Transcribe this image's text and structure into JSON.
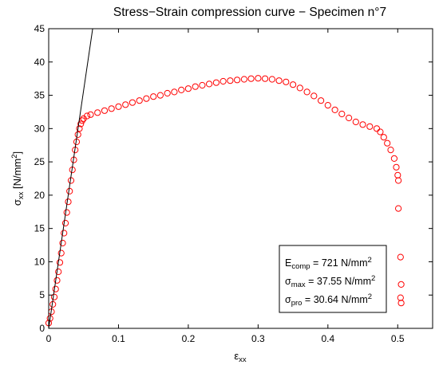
{
  "chart_data": {
    "type": "scatter",
    "title": "Stress−Strain compression curve − Specimen n°7",
    "xlabel": {
      "main": "ε",
      "sub": "xx"
    },
    "ylabel": {
      "main": "σ",
      "sub": "xx",
      "unit_pre": " [N/mm",
      "unit_sup": "2",
      "unit_post": "]"
    },
    "xlim": [
      0,
      0.55
    ],
    "ylim": [
      0,
      45
    ],
    "xticks": [
      0,
      0.1,
      0.2,
      0.3,
      0.4,
      0.5
    ],
    "xtick_labels": [
      "0",
      "0.1",
      "0.2",
      "0.3",
      "0.4",
      "0.5"
    ],
    "yticks": [
      0,
      5,
      10,
      15,
      20,
      25,
      30,
      35,
      40,
      45
    ],
    "ytick_labels": [
      "0",
      "5",
      "10",
      "15",
      "20",
      "25",
      "30",
      "35",
      "40",
      "45"
    ],
    "grid": false,
    "marker": "open circle",
    "colors": {
      "series": "#ff0000",
      "fit_line": "#000000",
      "axes": "#000000"
    },
    "series": [
      {
        "points": [
          [
            0.0,
            0.8
          ],
          [
            0.002,
            1.5
          ],
          [
            0.004,
            2.5
          ],
          [
            0.006,
            3.6
          ],
          [
            0.008,
            4.7
          ],
          [
            0.01,
            5.9
          ],
          [
            0.012,
            7.2
          ],
          [
            0.014,
            8.5
          ],
          [
            0.016,
            9.9
          ],
          [
            0.018,
            11.3
          ],
          [
            0.02,
            12.8
          ],
          [
            0.022,
            14.3
          ],
          [
            0.024,
            15.8
          ],
          [
            0.026,
            17.4
          ],
          [
            0.028,
            19.0
          ],
          [
            0.03,
            20.6
          ],
          [
            0.032,
            22.2
          ],
          [
            0.034,
            23.8
          ],
          [
            0.036,
            25.3
          ],
          [
            0.038,
            26.8
          ],
          [
            0.04,
            28.0
          ],
          [
            0.042,
            29.1
          ],
          [
            0.044,
            30.0
          ],
          [
            0.046,
            30.7
          ],
          [
            0.048,
            31.2
          ],
          [
            0.05,
            31.5
          ],
          [
            0.055,
            31.9
          ],
          [
            0.06,
            32.1
          ],
          [
            0.07,
            32.4
          ],
          [
            0.08,
            32.7
          ],
          [
            0.09,
            33.0
          ],
          [
            0.1,
            33.3
          ],
          [
            0.11,
            33.6
          ],
          [
            0.12,
            33.9
          ],
          [
            0.13,
            34.2
          ],
          [
            0.14,
            34.5
          ],
          [
            0.15,
            34.8
          ],
          [
            0.16,
            35.0
          ],
          [
            0.17,
            35.3
          ],
          [
            0.18,
            35.5
          ],
          [
            0.19,
            35.8
          ],
          [
            0.2,
            36.0
          ],
          [
            0.21,
            36.3
          ],
          [
            0.22,
            36.5
          ],
          [
            0.23,
            36.7
          ],
          [
            0.24,
            36.9
          ],
          [
            0.25,
            37.1
          ],
          [
            0.26,
            37.2
          ],
          [
            0.27,
            37.3
          ],
          [
            0.28,
            37.4
          ],
          [
            0.29,
            37.5
          ],
          [
            0.3,
            37.55
          ],
          [
            0.31,
            37.5
          ],
          [
            0.32,
            37.4
          ],
          [
            0.33,
            37.2
          ],
          [
            0.34,
            37.0
          ],
          [
            0.35,
            36.6
          ],
          [
            0.36,
            36.1
          ],
          [
            0.37,
            35.5
          ],
          [
            0.38,
            34.9
          ],
          [
            0.39,
            34.2
          ],
          [
            0.4,
            33.5
          ],
          [
            0.41,
            32.8
          ],
          [
            0.42,
            32.2
          ],
          [
            0.43,
            31.6
          ],
          [
            0.44,
            31.0
          ],
          [
            0.45,
            30.6
          ],
          [
            0.46,
            30.3
          ],
          [
            0.47,
            30.0
          ],
          [
            0.475,
            29.5
          ],
          [
            0.48,
            28.7
          ],
          [
            0.485,
            27.8
          ],
          [
            0.49,
            26.8
          ],
          [
            0.495,
            25.5
          ],
          [
            0.498,
            24.2
          ],
          [
            0.5,
            23.0
          ],
          [
            0.501,
            22.2
          ],
          [
            0.501,
            18.0
          ],
          [
            0.504,
            10.7
          ],
          [
            0.505,
            6.6
          ],
          [
            0.504,
            4.6
          ],
          [
            0.505,
            3.8
          ]
        ]
      }
    ],
    "fit_line": {
      "x": [
        0.0,
        0.063
      ],
      "y": [
        0.0,
        45.0
      ]
    },
    "legend": {
      "position": "bottom-right",
      "entries": [
        {
          "sym": "E",
          "sub": "comp",
          "text": " = 721 N/mm",
          "sup": "2"
        },
        {
          "sym": "σ",
          "sub": "max",
          "text": " = 37.55 N/mm",
          "sup": "2"
        },
        {
          "sym": "σ",
          "sub": "pro",
          "text": " = 30.64 N/mm",
          "sup": "2"
        }
      ]
    }
  }
}
